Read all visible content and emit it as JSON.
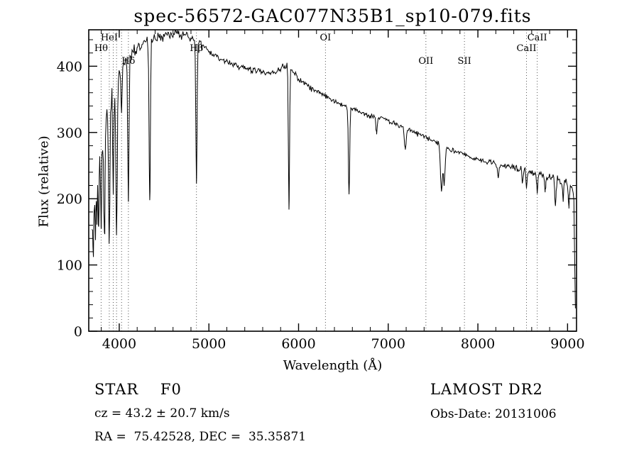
{
  "page": {
    "background": "#ffffff",
    "ink": "#000000"
  },
  "chart_data": {
    "type": "line",
    "title": "spec-56572-GAC077N35B1_sp10-079.fits",
    "xlabel": "Wavelength (Å)",
    "ylabel": "Flux (relative)",
    "xlim": [
      3660,
      9100
    ],
    "ylim": [
      0,
      455
    ],
    "x_ticks": [
      4000,
      5000,
      6000,
      7000,
      8000,
      9000
    ],
    "y_ticks": [
      0,
      100,
      200,
      300,
      400
    ],
    "x_minor_step": 200,
    "y_minor_step": 20,
    "grid": false,
    "legend": "none",
    "line_color": "#000000",
    "marker_line_color": "#555555",
    "spectral_lines": [
      {
        "label": "Hθ",
        "wavelength": 3798,
        "row": 1
      },
      {
        "label": "HeI",
        "wavelength": 3889,
        "row": 0
      },
      {
        "label": "",
        "wavelength": 3933,
        "row": -1
      },
      {
        "label": "",
        "wavelength": 3970,
        "row": -1
      },
      {
        "label": "",
        "wavelength": 4026,
        "row": -1
      },
      {
        "label": "Hδ",
        "wavelength": 4102,
        "row": 2
      },
      {
        "label": "Hβ",
        "wavelength": 4861,
        "row": 1
      },
      {
        "label": "OI",
        "wavelength": 6300,
        "row": 0
      },
      {
        "label": "OII",
        "wavelength": 7420,
        "row": 2
      },
      {
        "label": "SII",
        "wavelength": 7850,
        "row": 2
      },
      {
        "label": "CaII",
        "wavelength": 8542,
        "row": 1
      },
      {
        "label": "CaII",
        "wavelength": 8662,
        "row": 0
      }
    ],
    "continuum": [
      [
        3695,
        150
      ],
      [
        3720,
        235
      ],
      [
        3760,
        272
      ],
      [
        3800,
        300
      ],
      [
        3850,
        325
      ],
      [
        3900,
        350
      ],
      [
        3950,
        370
      ],
      [
        4000,
        390
      ],
      [
        4050,
        403
      ],
      [
        4100,
        413
      ],
      [
        4200,
        428
      ],
      [
        4300,
        437
      ],
      [
        4400,
        443
      ],
      [
        4500,
        446
      ],
      [
        4600,
        449
      ],
      [
        4700,
        447
      ],
      [
        4800,
        443
      ],
      [
        4900,
        433
      ],
      [
        5000,
        422
      ],
      [
        5100,
        413
      ],
      [
        5200,
        406
      ],
      [
        5300,
        401
      ],
      [
        5400,
        397
      ],
      [
        5500,
        393
      ],
      [
        5600,
        390
      ],
      [
        5700,
        391
      ],
      [
        5800,
        397
      ],
      [
        5870,
        403
      ],
      [
        5950,
        389
      ],
      [
        6000,
        381
      ],
      [
        6100,
        371
      ],
      [
        6200,
        362
      ],
      [
        6300,
        354
      ],
      [
        6400,
        347
      ],
      [
        6500,
        341
      ],
      [
        6600,
        335
      ],
      [
        6700,
        330
      ],
      [
        6800,
        325
      ],
      [
        6900,
        323
      ],
      [
        7000,
        318
      ],
      [
        7100,
        312
      ],
      [
        7200,
        306
      ],
      [
        7300,
        300
      ],
      [
        7400,
        294
      ],
      [
        7500,
        288
      ],
      [
        7600,
        281
      ],
      [
        7700,
        275
      ],
      [
        7800,
        269
      ],
      [
        7900,
        264
      ],
      [
        8000,
        260
      ],
      [
        8100,
        256
      ],
      [
        8200,
        253
      ],
      [
        8300,
        250
      ],
      [
        8400,
        247
      ],
      [
        8500,
        244
      ],
      [
        8600,
        240
      ],
      [
        8700,
        236
      ],
      [
        8800,
        232
      ],
      [
        8900,
        228
      ],
      [
        9000,
        224
      ],
      [
        9050,
        219
      ],
      [
        9070,
        206
      ],
      [
        9082,
        85
      ],
      [
        9090,
        4
      ]
    ],
    "noise_amp": [
      [
        3695,
        40
      ],
      [
        3780,
        34
      ],
      [
        3860,
        28
      ],
      [
        3950,
        22
      ],
      [
        4050,
        16
      ],
      [
        4200,
        12
      ],
      [
        4500,
        10
      ],
      [
        4800,
        9
      ],
      [
        5100,
        7
      ],
      [
        5500,
        6
      ],
      [
        6000,
        6
      ],
      [
        6500,
        5
      ],
      [
        7000,
        5
      ],
      [
        7600,
        5
      ],
      [
        8200,
        5
      ],
      [
        8600,
        6
      ],
      [
        8850,
        8
      ],
      [
        9000,
        7
      ],
      [
        9050,
        5
      ],
      [
        9090,
        1
      ]
    ],
    "absorption_lines": [
      {
        "wavelength": 3712,
        "flux": 95,
        "sigma": 5
      },
      {
        "wavelength": 3734,
        "flux": 140,
        "sigma": 5
      },
      {
        "wavelength": 3750,
        "flux": 150,
        "sigma": 5
      },
      {
        "wavelength": 3771,
        "flux": 155,
        "sigma": 6
      },
      {
        "wavelength": 3798,
        "flux": 160,
        "sigma": 6
      },
      {
        "wavelength": 3835,
        "flux": 130,
        "sigma": 7
      },
      {
        "wavelength": 3889,
        "flux": 135,
        "sigma": 7
      },
      {
        "wavelength": 3933,
        "flux": 210,
        "sigma": 6
      },
      {
        "wavelength": 3970,
        "flux": 150,
        "sigma": 8
      },
      {
        "wavelength": 4026,
        "flux": 330,
        "sigma": 5
      },
      {
        "wavelength": 4102,
        "flux": 196,
        "sigma": 7
      },
      {
        "wavelength": 4340,
        "flux": 192,
        "sigma": 7
      },
      {
        "wavelength": 4861,
        "flux": 224,
        "sigma": 7
      },
      {
        "wavelength": 5893,
        "flux": 182,
        "sigma": 6
      },
      {
        "wavelength": 6563,
        "flux": 206,
        "sigma": 7
      },
      {
        "wavelength": 6870,
        "flux": 298,
        "sigma": 8
      },
      {
        "wavelength": 7190,
        "flux": 276,
        "sigma": 10
      },
      {
        "wavelength": 7594,
        "flux": 214,
        "sigma": 12
      },
      {
        "wavelength": 7625,
        "flux": 224,
        "sigma": 9
      },
      {
        "wavelength": 8227,
        "flux": 234,
        "sigma": 8
      },
      {
        "wavelength": 8498,
        "flux": 222,
        "sigma": 6
      },
      {
        "wavelength": 8542,
        "flux": 214,
        "sigma": 6
      },
      {
        "wavelength": 8662,
        "flux": 209,
        "sigma": 6
      },
      {
        "wavelength": 8750,
        "flux": 212,
        "sigma": 7
      },
      {
        "wavelength": 8865,
        "flux": 193,
        "sigma": 8
      },
      {
        "wavelength": 8950,
        "flux": 200,
        "sigma": 7
      },
      {
        "wavelength": 9015,
        "flux": 188,
        "sigma": 7
      }
    ],
    "noise_seed": 20131006,
    "sample_step": 8
  },
  "footer": {
    "object_type": "STAR    F0",
    "survey": "LAMOST DR2",
    "cz": "cz = 43.2 ± 20.7 km/s",
    "obs_date": "Obs-Date: 20131006",
    "coords": "RA =  75.42528, DEC =  35.35871"
  }
}
